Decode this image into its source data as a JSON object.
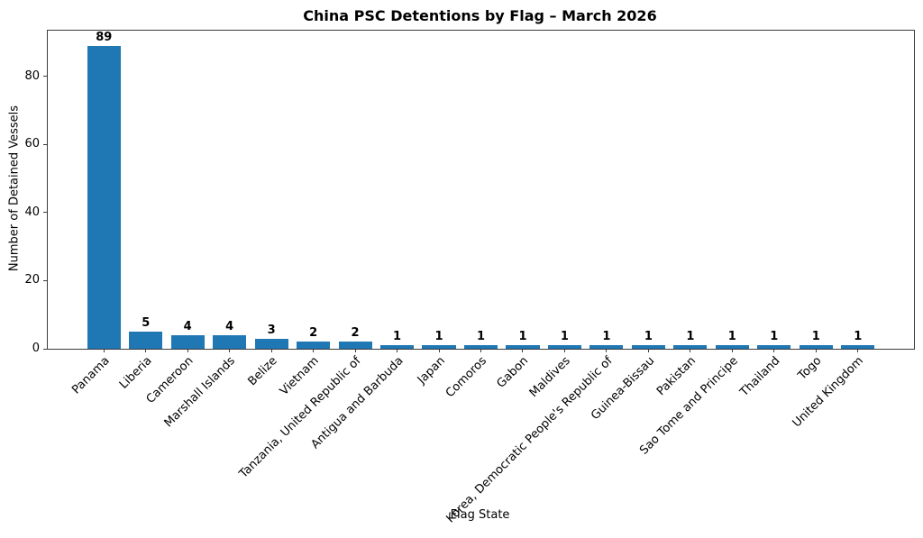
{
  "chart_data": {
    "type": "bar",
    "title": "China PSC Detentions by Flag – March 2026",
    "xlabel": "Flag State",
    "ylabel": "Number of Detained Vessels",
    "categories": [
      "Panama",
      "Liberia",
      "Cameroon",
      "Marshall Islands",
      "Belize",
      "Vietnam",
      "Tanzania, United Republic of",
      "Antigua and Barbuda",
      "Japan",
      "Comoros",
      "Gabon",
      "Maldives",
      "Korea, Democratic People's Republic of",
      "Guinea-Bissau",
      "Pakistan",
      "Sao Tome and Principe",
      "Thailand",
      "Togo",
      "United Kingdom"
    ],
    "values": [
      89,
      5,
      4,
      4,
      3,
      2,
      2,
      1,
      1,
      1,
      1,
      1,
      1,
      1,
      1,
      1,
      1,
      1,
      1
    ],
    "ylim": [
      0,
      93.45
    ],
    "yticks": [
      0,
      20,
      40,
      60,
      80
    ],
    "grid": false,
    "legend": null,
    "bar_color": "#1f77b4",
    "value_labels_shown": true,
    "value_labels_bold": true,
    "x_tick_rotation_deg": 45,
    "background_color": "#ffffff",
    "spine_color": "#3c3c3c"
  }
}
